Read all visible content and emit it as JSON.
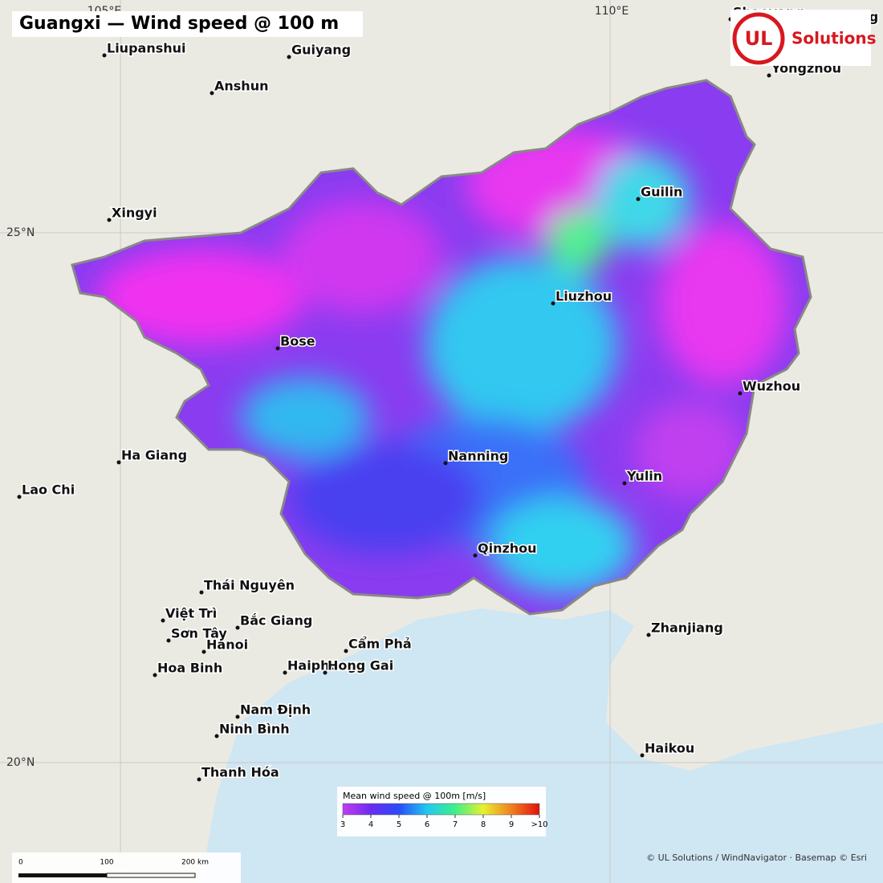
{
  "title": "Guangxi — Wind speed @ 100 m",
  "logo": {
    "mark": "UL",
    "text": "Solutions"
  },
  "graticule": [
    "105°E",
    "110°E",
    "25°N",
    "20°N"
  ],
  "cities": [
    "Liupanshui",
    "Guiyang",
    "Anshun",
    "Xingyi",
    "Bose",
    "Nanning",
    "Liuzhou",
    "Guilin",
    "Wuzhou",
    "Yulin",
    "Qinzhou",
    "Ha Giang",
    "Lao Chi",
    "Thái Nguyên",
    "Việt Trì",
    "Bắc Giang",
    "Sơn Tây",
    "Hanoi",
    "Hoa Binh",
    "Haiphong",
    "Cẩm Phả",
    "Hong Gai",
    "Nam Định",
    "Ninh Bình",
    "Thanh Hóa",
    "Zhanjiang",
    "Haikou",
    "Yongzhou",
    "Shaoyang",
    "Hengyang"
  ],
  "legend": {
    "title": "Mean wind speed @ 100m  [m/s]",
    "range": [
      3,
      10
    ],
    "colors": [
      "#c03cf0",
      "#6a2cf0",
      "#2a4cf8",
      "#22c8f0",
      "#3cf08a",
      "#e8f030",
      "#f08020",
      "#e01010"
    ],
    "ticks": [
      3,
      4,
      5,
      6,
      7,
      8,
      9,
      {
        "value": 10,
        "label": ">10"
      }
    ]
  },
  "scale_bar": [
    "0",
    "100",
    "200 km"
  ],
  "attribution": "© UL Solutions / WindNavigator · Basemap © Esri"
}
